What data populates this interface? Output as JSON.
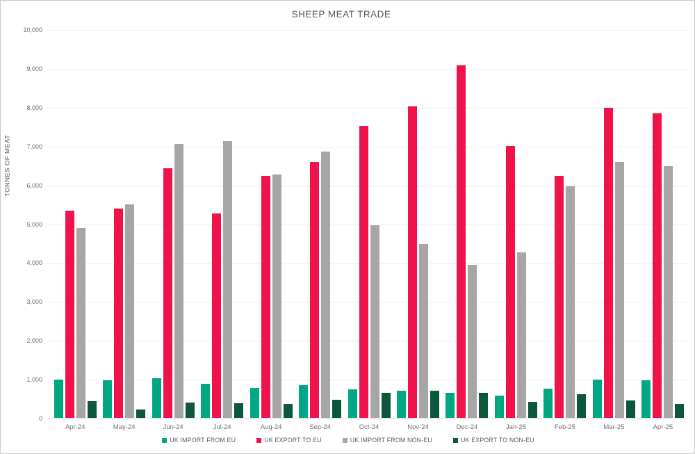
{
  "title": "SHEEP MEAT TRADE",
  "y_axis": {
    "label": "TONNES OF MEAT"
  },
  "chart_data": {
    "type": "bar",
    "title": "SHEEP MEAT TRADE",
    "xlabel": "",
    "ylabel": "TONNES OF MEAT",
    "ylim": [
      0,
      10000
    ],
    "y_tick_step": 1000,
    "grid": true,
    "legend_position": "bottom",
    "categories": [
      "Apr-24",
      "May-24",
      "Jun-24",
      "Jul-24",
      "Aug-24",
      "Sep-24",
      "Oct-24",
      "Nov-24",
      "Dec-24",
      "Jan-25",
      "Feb-25",
      "Mar-25",
      "Apr-25"
    ],
    "series": [
      {
        "name": "UK IMPORT FROM EU",
        "color": "#00a783",
        "values": [
          980,
          970,
          1020,
          880,
          765,
          840,
          730,
          695,
          650,
          580,
          745,
          990,
          970
        ]
      },
      {
        "name": "UK EXPORT TO EU",
        "color": "#f0134b",
        "values": [
          5340,
          5390,
          6420,
          5260,
          6230,
          6590,
          7510,
          8020,
          9065,
          7000,
          6220,
          7980,
          7830
        ]
      },
      {
        "name": "UK IMPORT FROM NON-EU",
        "color": "#a6a6a6",
        "values": [
          4890,
          5500,
          7050,
          7120,
          6265,
          6855,
          4960,
          4465,
          3940,
          4250,
          5960,
          6590,
          6470
        ]
      },
      {
        "name": "UK EXPORT TO NON-EU",
        "color": "#0d573c",
        "values": [
          430,
          215,
          385,
          370,
          350,
          460,
          640,
          705,
          650,
          410,
          610,
          455,
          360
        ]
      }
    ]
  }
}
